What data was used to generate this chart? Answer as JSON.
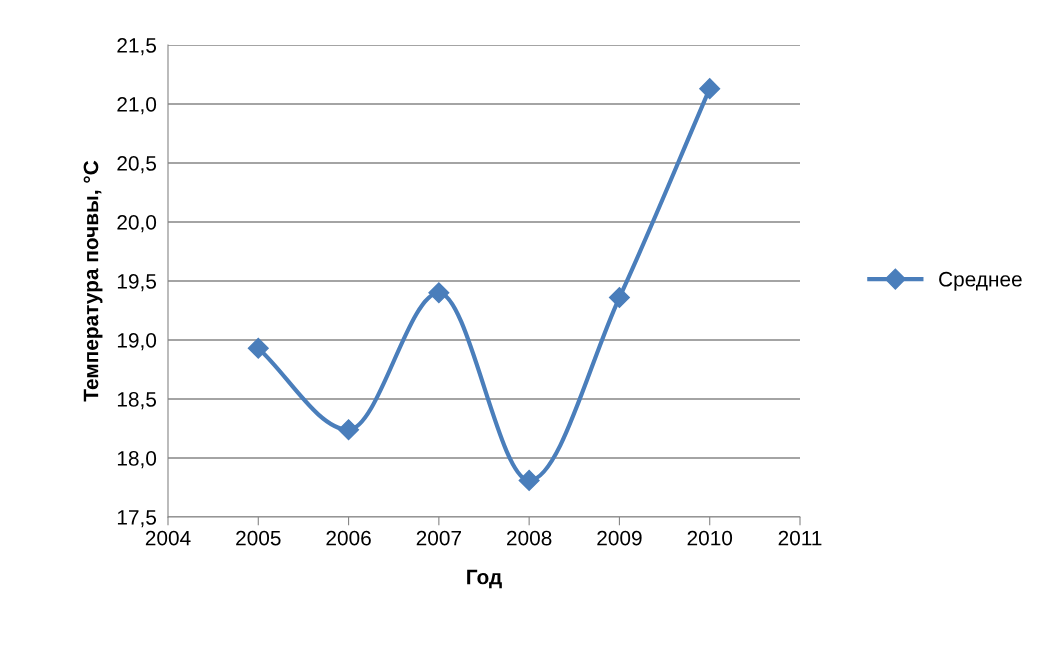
{
  "chart_data": {
    "type": "line",
    "xlabel": "Год",
    "ylabel": "Температура почвы, °C",
    "x": [
      2005,
      2006,
      2007,
      2008,
      2009,
      2010
    ],
    "series": [
      {
        "name": "Среднее",
        "color": "#4a7ebb",
        "values": [
          18.93,
          18.24,
          19.4,
          17.81,
          19.36,
          21.13
        ]
      }
    ],
    "xlim": [
      2004,
      2011
    ],
    "xticks": [
      2004,
      2005,
      2006,
      2007,
      2008,
      2009,
      2010,
      2011
    ],
    "ylim": [
      17.5,
      21.5
    ],
    "yticks": [
      {
        "value": 17.5,
        "label": "17,5"
      },
      {
        "value": 18.0,
        "label": "18,0"
      },
      {
        "value": 18.5,
        "label": "18,5"
      },
      {
        "value": 19.0,
        "label": "19,0"
      },
      {
        "value": 19.5,
        "label": "19,5"
      },
      {
        "value": 20.0,
        "label": "20,0"
      },
      {
        "value": 20.5,
        "label": "20,5"
      },
      {
        "value": 21.0,
        "label": "21,0"
      },
      {
        "value": 21.5,
        "label": "21,5"
      }
    ],
    "grid": "y",
    "legend": "right",
    "marker": "diamond",
    "line_style": "solid"
  }
}
